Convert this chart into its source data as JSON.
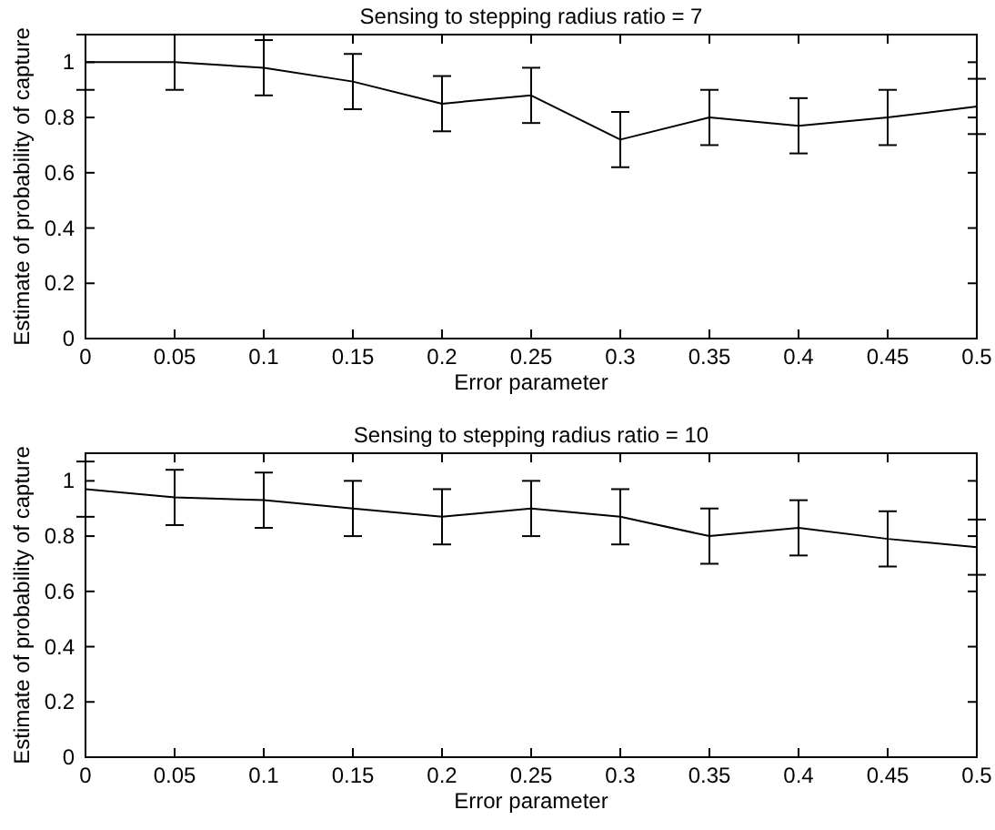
{
  "chart_data": [
    {
      "type": "line",
      "title": "Sensing to stepping radius ratio = 7",
      "xlabel": "Error parameter",
      "ylabel": "Estimate of probability of capture",
      "x": [
        0,
        0.05,
        0.1,
        0.15,
        0.2,
        0.25,
        0.3,
        0.35,
        0.4,
        0.45,
        0.5
      ],
      "series": [
        {
          "color": "#000000",
          "values": [
            1,
            1,
            0.98,
            0.93,
            0.85,
            0.88,
            0.72,
            0.8,
            0.77,
            0.8,
            0.84
          ],
          "errors": [
            0.1,
            0.1,
            0.1,
            0.1,
            0.1,
            0.1,
            0.1,
            0.1,
            0.1,
            0.1,
            0.1
          ]
        }
      ],
      "xlim": [
        0,
        0.5
      ],
      "xticks": [
        0,
        0.05,
        0.1,
        0.15,
        0.2,
        0.25,
        0.3,
        0.35,
        0.4,
        0.45,
        0.5
      ],
      "ylim": [
        0,
        1.1
      ],
      "yticks": [
        0,
        0.2,
        0.4,
        0.6,
        0.8,
        1
      ],
      "grid": false,
      "marker": "none",
      "line_style": "solid"
    },
    {
      "type": "line",
      "title": "Sensing to stepping radius ratio = 10",
      "xlabel": "Error parameter",
      "ylabel": "Estimate of probability of capture",
      "x": [
        0,
        0.05,
        0.1,
        0.15,
        0.2,
        0.25,
        0.3,
        0.35,
        0.4,
        0.45,
        0.5
      ],
      "series": [
        {
          "color": "#000000",
          "values": [
            0.97,
            0.94,
            0.93,
            0.9,
            0.87,
            0.9,
            0.87,
            0.8,
            0.83,
            0.79,
            0.76
          ],
          "errors": [
            0.1,
            0.1,
            0.1,
            0.1,
            0.1,
            0.1,
            0.1,
            0.1,
            0.1,
            0.1,
            0.1
          ]
        }
      ],
      "xlim": [
        0,
        0.5
      ],
      "xticks": [
        0,
        0.05,
        0.1,
        0.15,
        0.2,
        0.25,
        0.3,
        0.35,
        0.4,
        0.45,
        0.5
      ],
      "ylim": [
        0,
        1.1
      ],
      "yticks": [
        0,
        0.2,
        0.4,
        0.6,
        0.8,
        1
      ],
      "grid": false,
      "marker": "none",
      "line_style": "solid"
    }
  ]
}
